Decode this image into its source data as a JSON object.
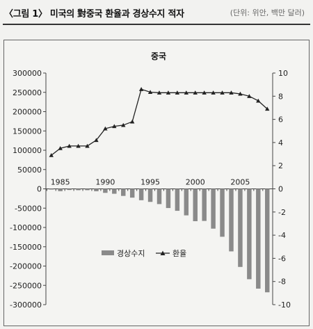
{
  "header": {
    "figure_title": "〈그림 1〉 미국의 對중국 환율과 경상수지 적자",
    "unit_note": "(단위: 위안, 백만 달러)"
  },
  "chart_data": {
    "type": "bar",
    "title": "중국",
    "x": [
      1984,
      1985,
      1986,
      1987,
      1988,
      1989,
      1990,
      1991,
      1992,
      1993,
      1994,
      1995,
      1996,
      1997,
      1998,
      1999,
      2000,
      2001,
      2002,
      2003,
      2004,
      2005,
      2006,
      2007,
      2008
    ],
    "x_tick_labels": [
      "1985",
      "1990",
      "1995",
      "2000",
      "2005"
    ],
    "x_tick_values": [
      1985,
      1990,
      1995,
      2000,
      2005
    ],
    "series": [
      {
        "name": "경상수지",
        "type": "bar",
        "axis": "left",
        "color": "#8a8a8a",
        "values": [
          -100,
          -6000,
          -3000,
          -3500,
          -3500,
          -6200,
          -10400,
          -12700,
          -18300,
          -22800,
          -29500,
          -33800,
          -39500,
          -49700,
          -56900,
          -68700,
          -83800,
          -83100,
          -103100,
          -124100,
          -162000,
          -202300,
          -234100,
          -258500,
          -268000
        ]
      },
      {
        "name": "환율",
        "type": "line",
        "axis": "right",
        "color": "#222222",
        "marker": "triangle",
        "values": [
          2.9,
          3.5,
          3.7,
          3.7,
          3.7,
          4.2,
          5.2,
          5.4,
          5.5,
          5.8,
          8.6,
          8.35,
          8.3,
          8.3,
          8.3,
          8.3,
          8.3,
          8.3,
          8.3,
          8.3,
          8.3,
          8.2,
          8.0,
          7.6,
          6.9
        ]
      }
    ],
    "ylim_left": [
      -300000,
      300000
    ],
    "yticks_left": [
      300000,
      250000,
      200000,
      150000,
      100000,
      50000,
      0,
      -50000,
      -100000,
      -150000,
      -200000,
      -250000,
      -300000
    ],
    "ytick_labels_left": [
      "300000",
      "250000",
      "200000",
      "150000",
      "100000",
      "50000",
      "0",
      "-50000",
      "-100000",
      "-150000",
      "-200000",
      "-250000",
      "-300000"
    ],
    "ylim_right": [
      -10,
      10
    ],
    "yticks_right": [
      10,
      8,
      6,
      4,
      2,
      0,
      -2,
      -4,
      -6,
      -8,
      -10
    ],
    "ytick_labels_right": [
      "10",
      "8",
      "6",
      "4",
      "2",
      "0",
      "-2",
      "-4",
      "-6",
      "-8",
      "-10"
    ],
    "legend_position": "lower-center",
    "grid": false
  }
}
